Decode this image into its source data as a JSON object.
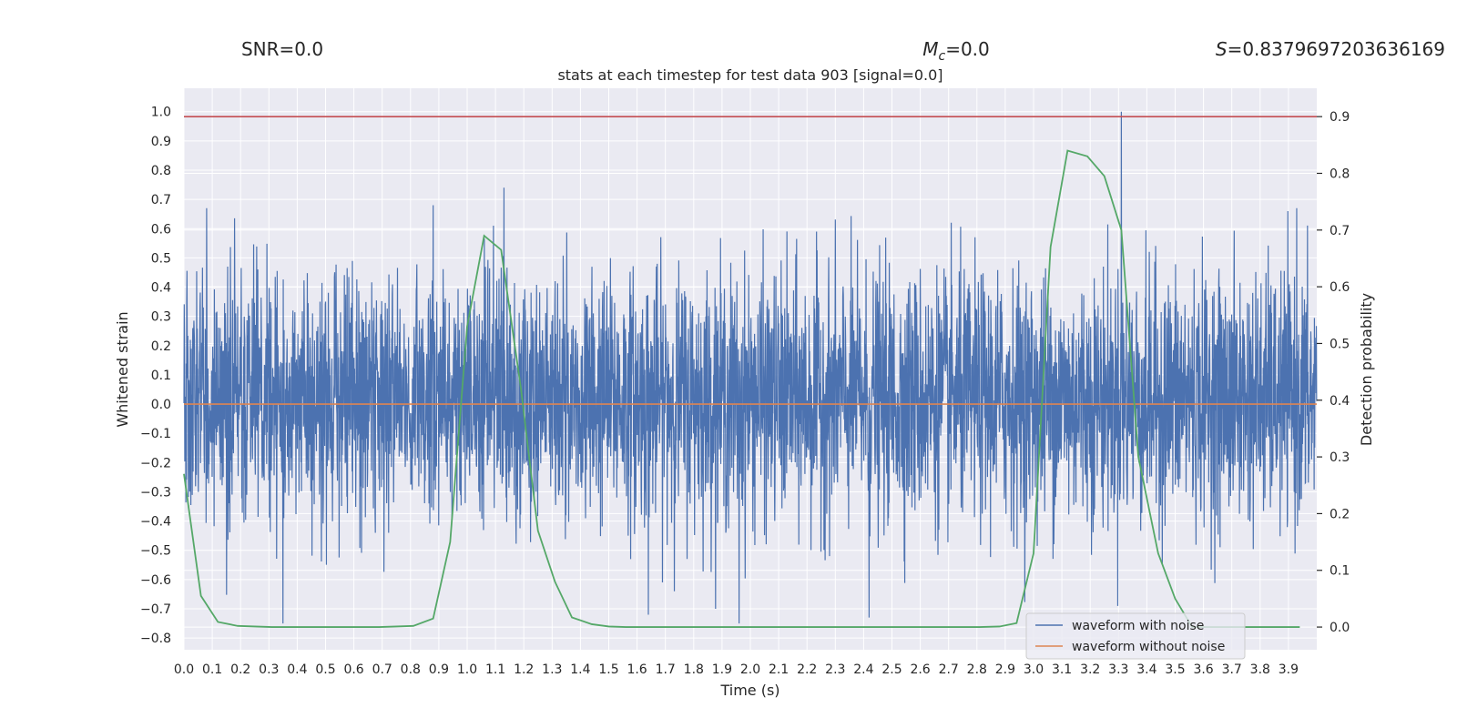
{
  "header": {
    "snr_label": "SNR=0.0",
    "mc_symbol": "M",
    "mc_subscript": "c",
    "mc_value": "=0.0",
    "s_symbol": "S",
    "s_value": "=0.8379697203636169"
  },
  "chart_data": {
    "type": "line",
    "title": "stats at each timestep for test data 903 [signal=0.0]",
    "xlabel": "Time (s)",
    "ylabel": "Whitened strain",
    "y2label": "Detection probability",
    "xlim": [
      0.0,
      4.0
    ],
    "ylim": [
      -0.84,
      1.08
    ],
    "y2lim": [
      -0.04,
      0.95
    ],
    "x_ticks": [
      0.0,
      0.1,
      0.2,
      0.3,
      0.4,
      0.5,
      0.6,
      0.7,
      0.8,
      0.9,
      1.0,
      1.1,
      1.2,
      1.3,
      1.4,
      1.5,
      1.6,
      1.7,
      1.8,
      1.9,
      2.0,
      2.1,
      2.2,
      2.3,
      2.4,
      2.5,
      2.6,
      2.7,
      2.8,
      2.9,
      3.0,
      3.1,
      3.2,
      3.3,
      3.4,
      3.5,
      3.6,
      3.7,
      3.8,
      3.9
    ],
    "y_ticks": [
      1.0,
      0.9,
      0.8,
      0.7,
      0.6,
      0.5,
      0.4,
      0.3,
      0.2,
      0.1,
      0.0,
      -0.1,
      -0.2,
      -0.3,
      -0.4,
      -0.5,
      -0.6,
      -0.7,
      -0.8
    ],
    "y2_ticks": [
      0.9,
      0.8,
      0.7,
      0.6,
      0.5,
      0.4,
      0.3,
      0.2,
      0.1,
      0.0
    ],
    "y_tick_labels": [
      "1.0",
      "0.9",
      "0.8",
      "0.7",
      "0.6",
      "0.5",
      "0.4",
      "0.3",
      "0.2",
      "0.1",
      "0.0",
      "−0.1",
      "−0.2",
      "−0.3",
      "−0.4",
      "−0.5",
      "−0.6",
      "−0.7",
      "−0.8"
    ],
    "grid": true,
    "threshold_line": {
      "y2": 0.9,
      "color": "#c44e52"
    },
    "series": [
      {
        "name": "waveform with noise",
        "axis": "left",
        "color": "#4c72b0",
        "description_of_values": "dense noise centred near 0.02, mostly within -0.5..0.55, peaks ~0.74 at 1.13 s and 1.0 at 3.31 s, troughs ~-0.75 at 0.35 s and 1.96 s",
        "noise_std": 0.21,
        "noise_offset": 0.02,
        "n_points": 4096,
        "peaks": [
          [
            1.13,
            0.74
          ],
          [
            3.31,
            1.0
          ],
          [
            0.08,
            0.67
          ],
          [
            0.88,
            0.68
          ],
          [
            3.93,
            0.67
          ],
          [
            0.35,
            -0.75
          ],
          [
            1.96,
            -0.75
          ],
          [
            2.42,
            -0.73
          ],
          [
            1.64,
            -0.72
          ]
        ]
      },
      {
        "name": "waveform without noise",
        "axis": "left",
        "color": "#dd8452",
        "x": [
          0.0,
          4.0
        ],
        "y": [
          0.0,
          0.0
        ]
      },
      {
        "name": "detection probability",
        "axis": "right",
        "color": "#55a868",
        "x": [
          0.0,
          0.06,
          0.12,
          0.19,
          0.25,
          0.31,
          0.37,
          0.44,
          0.5,
          0.56,
          0.62,
          0.69,
          0.75,
          0.81,
          0.88,
          0.94,
          1.0,
          1.06,
          1.12,
          1.19,
          1.25,
          1.31,
          1.37,
          1.44,
          1.5,
          1.56,
          1.62,
          1.69,
          1.75,
          1.81,
          1.88,
          1.94,
          2.0,
          2.06,
          2.12,
          2.19,
          2.25,
          2.31,
          2.37,
          2.44,
          2.5,
          2.56,
          2.62,
          2.69,
          2.75,
          2.81,
          2.88,
          2.94,
          3.0,
          3.06,
          3.12,
          3.19,
          3.25,
          3.31,
          3.37,
          3.44,
          3.5,
          3.56,
          3.62,
          3.69,
          3.75,
          3.81,
          3.87,
          3.94
        ],
        "y": [
          0.27,
          0.055,
          0.009,
          0.002,
          0.001,
          0.0,
          0.0,
          0.0,
          0.0,
          0.0,
          0.0,
          0.0,
          0.001,
          0.002,
          0.015,
          0.15,
          0.53,
          0.69,
          0.665,
          0.42,
          0.17,
          0.08,
          0.017,
          0.005,
          0.001,
          0.0,
          0.0,
          0.0,
          0.0,
          0.0,
          0.0,
          0.0,
          0.0,
          0.0,
          0.0,
          0.0,
          0.0,
          0.0,
          0.0,
          0.0,
          0.0,
          0.0,
          0.0,
          0.0,
          0.0,
          0.0,
          0.001,
          0.007,
          0.13,
          0.67,
          0.84,
          0.83,
          0.795,
          0.7,
          0.3,
          0.13,
          0.05,
          0.0,
          0.0,
          0.0,
          0.0,
          0.0,
          0.0,
          0.0
        ]
      }
    ],
    "legend": {
      "position": "lower-right",
      "entries": [
        {
          "label": "waveform with noise",
          "color": "#4c72b0"
        },
        {
          "label": "waveform without noise",
          "color": "#dd8452"
        }
      ]
    },
    "colors": {
      "plot_background": "#eaeaf2",
      "grid": "#ffffff"
    }
  }
}
